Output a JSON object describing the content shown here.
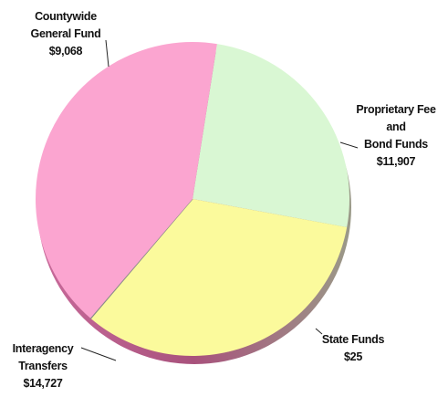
{
  "chart_data": {
    "type": "pie",
    "title": "",
    "slices": [
      {
        "name": "Countywide General Fund",
        "label_lines": [
          "Countywide",
          "General Fund",
          "$9,068"
        ],
        "value": 9068,
        "color": "#d9f7d3"
      },
      {
        "name": "Proprietary Fee and Bond Funds",
        "label_lines": [
          "Proprietary Fee",
          "and",
          "Bond Funds",
          "$11,907"
        ],
        "value": 11907,
        "color": "#fbfa9c"
      },
      {
        "name": "State Funds",
        "label_lines": [
          "State Funds",
          "$25"
        ],
        "value": 25,
        "color": "#8a8a8a"
      },
      {
        "name": "Interagency Transfers",
        "label_lines": [
          "Interagency",
          "Transfers",
          "$14,727"
        ],
        "value": 14727,
        "color": "#fba5d0"
      }
    ],
    "legend": "none"
  }
}
